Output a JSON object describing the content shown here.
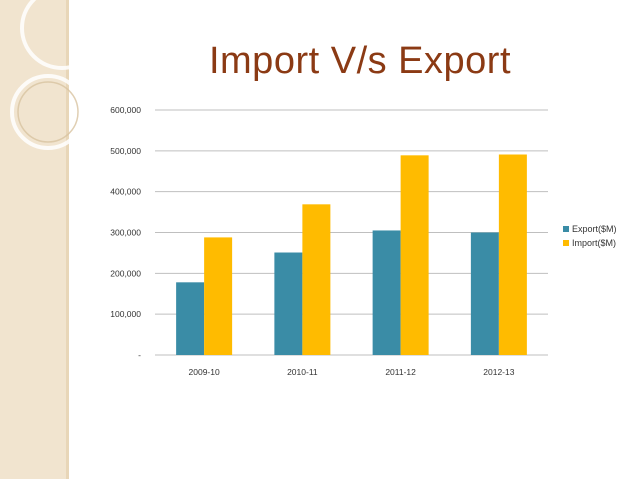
{
  "slide": {
    "title": "Import V/s Export"
  },
  "colors": {
    "export": "#3a8ca6",
    "import": "#ffbb00",
    "grid": "#bfbfbf",
    "title": "#8b3a14",
    "band": "#f1e4cf"
  },
  "chart_data": {
    "type": "bar",
    "title": "Import V/s Export",
    "xlabel": "",
    "ylabel": "",
    "categories": [
      "2009-10",
      "2010-11",
      "2011-12",
      "2012-13"
    ],
    "series": [
      {
        "name": "Export($M)",
        "values": [
          178000,
          251000,
          305000,
          300000
        ],
        "color": "#3a8ca6"
      },
      {
        "name": "Import($M)",
        "values": [
          288000,
          369000,
          489000,
          491000
        ],
        "color": "#ffbb00"
      }
    ],
    "ylim": [
      0,
      600000
    ],
    "yticks": [
      {
        "value": 0,
        "label": "-"
      },
      {
        "value": 100000,
        "label": "100,000"
      },
      {
        "value": 200000,
        "label": "200,000"
      },
      {
        "value": 300000,
        "label": "300,000"
      },
      {
        "value": 400000,
        "label": "400,000"
      },
      {
        "value": 500000,
        "label": "500,000"
      },
      {
        "value": 600000,
        "label": "600,000"
      }
    ],
    "grid": true,
    "legend": "right"
  }
}
